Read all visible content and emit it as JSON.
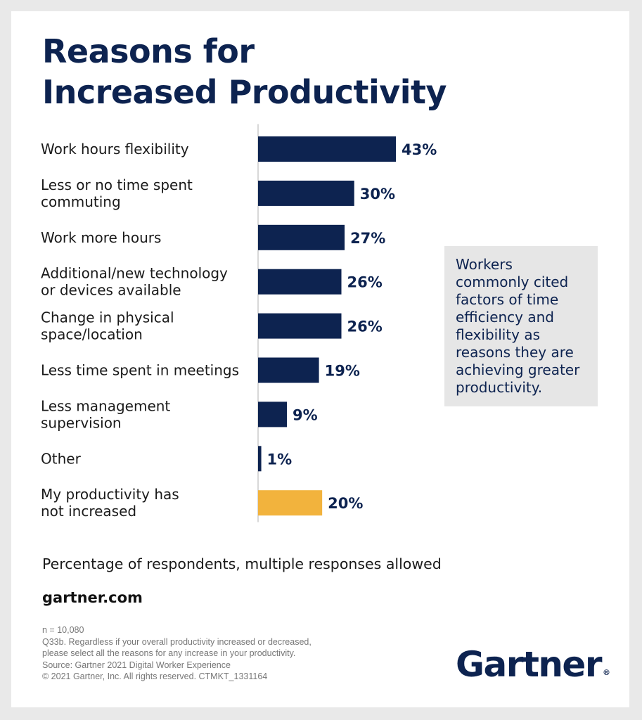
{
  "title_lines": [
    "Reasons for",
    "Increased Productivity"
  ],
  "chart_data": {
    "type": "bar",
    "orientation": "horizontal",
    "categories": [
      [
        "Work hours flexibility"
      ],
      [
        "Less or no time spent",
        "commuting"
      ],
      [
        "Work more hours"
      ],
      [
        "Additional/new technology",
        "or devices available"
      ],
      [
        "Change in physical",
        "space/location"
      ],
      [
        "Less time spent in meetings"
      ],
      [
        "Less management",
        "supervision"
      ],
      [
        "Other"
      ],
      [
        "My productivity has",
        "not increased"
      ]
    ],
    "values": [
      43,
      30,
      27,
      26,
      26,
      19,
      9,
      1,
      20
    ],
    "value_labels": [
      "43%",
      "30%",
      "27%",
      "26%",
      "26%",
      "19%",
      "9%",
      "1%",
      "20%"
    ],
    "colors": [
      "#0d2350",
      "#0d2350",
      "#0d2350",
      "#0d2350",
      "#0d2350",
      "#0d2350",
      "#0d2350",
      "#0d2350",
      "#f2b33d"
    ],
    "unit": "%",
    "xlim": [
      0,
      43
    ],
    "grid": false,
    "legend": "none"
  },
  "callout_lines": [
    "Workers",
    "commonly cited",
    "factors of time",
    "efficiency and",
    "flexibility as",
    "reasons they are",
    "achieving greater",
    "productivity."
  ],
  "caption": "Percentage of respondents, multiple responses allowed",
  "site": "gartner.com",
  "footnotes": [
    "n = 10,080",
    "Q33b. Regardless if your overall productivity increased or decreased,",
    "please select all the reasons for any increase in your productivity.",
    "Source: Gartner 2021 Digital Worker Experience",
    "© 2021 Gartner, Inc. All rights reserved. CTMKT_1331164"
  ],
  "logo": {
    "text": "Gartner",
    "mark": "®"
  },
  "colors": {
    "navy": "#0d2350",
    "gold": "#f2b33d",
    "callout_bg": "#e6e6e6"
  }
}
